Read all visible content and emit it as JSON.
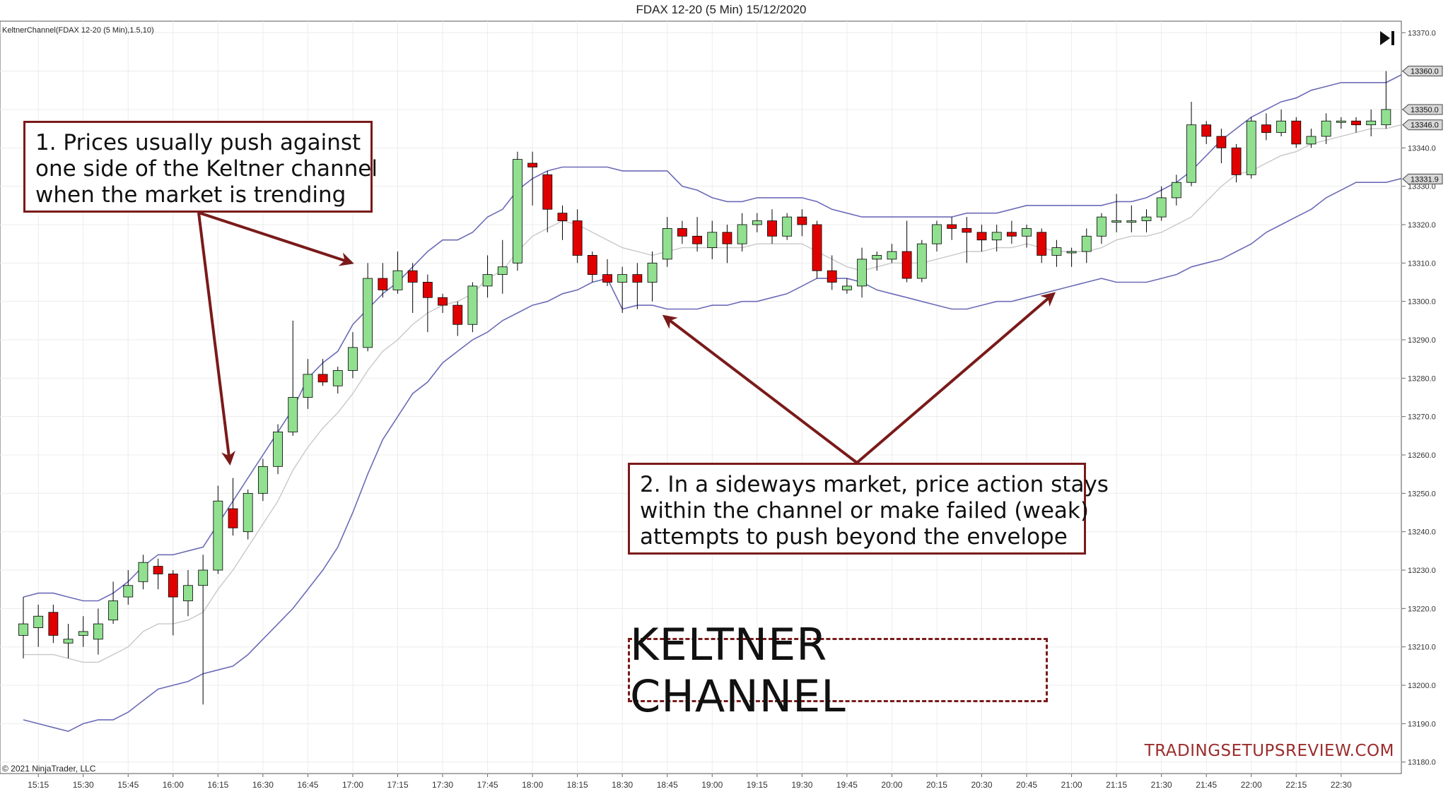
{
  "window": {
    "title": "FDAX 12-20 (5 Min)  15/12/2020",
    "indicator_label": "KeltnerChannel(FDAX 12-20 (5 Min),1.5,10)",
    "copyright": "© 2021 NinjaTrader, LLC",
    "end_button_icon": "skip-to-end-icon"
  },
  "annotations": {
    "note1": [
      "1. Prices usually push against",
      "one side of the Keltner channel",
      "when the market is trending"
    ],
    "note2": [
      "2. In a sideways market, price action stays",
      "within the channel or make failed (weak)",
      "attempts to push beyond the envelope"
    ],
    "title": "KELTNER CHANNEL",
    "watermark": "TRADINGSETUPSREVIEW.COM"
  },
  "colors": {
    "up_candle": "#90e090",
    "down_candle": "#e00000",
    "channel": "#6b6bb8",
    "midline": "#c8c8c8",
    "annotation": "#7a1a1a"
  },
  "chart_data": {
    "type": "candlestick",
    "ylim": [
      13177,
      13373
    ],
    "y_ticks": [
      "13370.0",
      "13360.0",
      "13350.0",
      "13340.0",
      "13330.0",
      "13320.0",
      "13310.0",
      "13300.0",
      "13290.0",
      "13280.0",
      "13270.0",
      "13260.0",
      "13250.0",
      "13240.0",
      "13230.0",
      "13220.0",
      "13210.0",
      "13200.0",
      "13190.0",
      "13180.0"
    ],
    "x_ticks": [
      "15:15",
      "15:30",
      "15:45",
      "16:00",
      "16:15",
      "16:30",
      "16:45",
      "17:00",
      "17:15",
      "17:30",
      "17:45",
      "18:00",
      "18:15",
      "18:30",
      "18:45",
      "19:00",
      "19:15",
      "19:30",
      "19:45",
      "20:00",
      "20:15",
      "20:30",
      "20:45",
      "21:00",
      "21:15",
      "21:30",
      "21:45",
      "22:00",
      "22:15",
      "22:30"
    ],
    "price_markers": [
      {
        "label": "13360.0",
        "value": 13360.0
      },
      {
        "label": "13350.0",
        "value": 13350.0
      },
      {
        "label": "13346.0",
        "value": 13346.0
      },
      {
        "label": "13331.9",
        "value": 13331.9
      }
    ],
    "candles": [
      [
        13213,
        13223,
        13207,
        13216
      ],
      [
        13215,
        13221,
        13210,
        13218
      ],
      [
        13219,
        13221,
        13211,
        13213
      ],
      [
        13211,
        13216,
        13207,
        13212
      ],
      [
        13213,
        13218,
        13210,
        13214
      ],
      [
        13212,
        13220,
        13208,
        13216
      ],
      [
        13217,
        13227,
        13216,
        13222
      ],
      [
        13223,
        13230,
        13221,
        13226
      ],
      [
        13227,
        13234,
        13225,
        13232
      ],
      [
        13231,
        13233,
        13225,
        13229
      ],
      [
        13229,
        13230,
        13213,
        13223
      ],
      [
        13222,
        13230,
        13218,
        13226
      ],
      [
        13226,
        13234,
        13195,
        13230
      ],
      [
        13230,
        13252,
        13229,
        13248
      ],
      [
        13246,
        13254,
        13239,
        13241
      ],
      [
        13240,
        13251,
        13238,
        13250
      ],
      [
        13250,
        13259,
        13248,
        13257
      ],
      [
        13257,
        13268,
        13255,
        13266
      ],
      [
        13266,
        13295,
        13265,
        13275
      ],
      [
        13275,
        13285,
        13272,
        13281
      ],
      [
        13281,
        13285,
        13278,
        13279
      ],
      [
        13278,
        13283,
        13276,
        13282
      ],
      [
        13282,
        13292,
        13280,
        13288
      ],
      [
        13288,
        13310,
        13287,
        13306
      ],
      [
        13306,
        13310,
        13301,
        13303
      ],
      [
        13303,
        13313,
        13302,
        13308
      ],
      [
        13308,
        13310,
        13297,
        13305
      ],
      [
        13305,
        13307,
        13292,
        13301
      ],
      [
        13301,
        13302,
        13297,
        13299
      ],
      [
        13299,
        13300,
        13291,
        13294
      ],
      [
        13294,
        13305,
        13292,
        13304
      ],
      [
        13304,
        13312,
        13301,
        13307
      ],
      [
        13307,
        13316,
        13302,
        13309
      ],
      [
        13310,
        13339,
        13308,
        13337
      ],
      [
        13336,
        13339,
        13325,
        13335
      ],
      [
        13333,
        13334,
        13318,
        13324
      ],
      [
        13323,
        13325,
        13316,
        13321
      ],
      [
        13321,
        13324,
        13310,
        13312
      ],
      [
        13312,
        13313,
        13305,
        13307
      ],
      [
        13307,
        13311,
        13304,
        13305
      ],
      [
        13305,
        13309,
        13297,
        13307
      ],
      [
        13307,
        13310,
        13298,
        13305
      ],
      [
        13305,
        13313,
        13300,
        13310
      ],
      [
        13311,
        13322,
        13309,
        13319
      ],
      [
        13319,
        13321,
        13315,
        13317
      ],
      [
        13317,
        13322,
        13313,
        13315
      ],
      [
        13314,
        13321,
        13311,
        13318
      ],
      [
        13318,
        13320,
        13310,
        13315
      ],
      [
        13315,
        13323,
        13313,
        13320
      ],
      [
        13320,
        13323,
        13318,
        13321
      ],
      [
        13321,
        13324,
        13315,
        13317
      ],
      [
        13317,
        13323,
        13316,
        13322
      ],
      [
        13322,
        13324,
        13317,
        13320
      ],
      [
        13320,
        13321,
        13306,
        13308
      ],
      [
        13308,
        13312,
        13303,
        13305
      ],
      [
        13303,
        13306,
        13302,
        13304
      ],
      [
        13304,
        13314,
        13301,
        13311
      ],
      [
        13311,
        13313,
        13308,
        13312
      ],
      [
        13311,
        13315,
        13310,
        13313
      ],
      [
        13313,
        13321,
        13305,
        13306
      ],
      [
        13306,
        13316,
        13305,
        13315
      ],
      [
        13315,
        13321,
        13313,
        13320
      ],
      [
        13320,
        13322,
        13316,
        13319
      ],
      [
        13319,
        13322,
        13310,
        13318
      ],
      [
        13318,
        13320,
        13313,
        13316
      ],
      [
        13316,
        13320,
        13313,
        13318
      ],
      [
        13318,
        13321,
        13315,
        13317
      ],
      [
        13317,
        13320,
        13314,
        13319
      ],
      [
        13318,
        13319,
        13310,
        13312
      ],
      [
        13312,
        13316,
        13309,
        13314
      ],
      [
        13313,
        13314,
        13309,
        13313
      ],
      [
        13313,
        13319,
        13310,
        13317
      ],
      [
        13317,
        13323,
        13315,
        13322
      ],
      [
        13321,
        13328,
        13318,
        13321
      ],
      [
        13321,
        13325,
        13318,
        13321
      ],
      [
        13321,
        13324,
        13318,
        13322
      ],
      [
        13322,
        13330,
        13321,
        13327
      ],
      [
        13327,
        13333,
        13325,
        13331
      ],
      [
        13331,
        13352,
        13330,
        13346
      ],
      [
        13346,
        13347,
        13341,
        13343
      ],
      [
        13343,
        13345,
        13336,
        13340
      ],
      [
        13340,
        13341,
        13331,
        13333
      ],
      [
        13333,
        13348,
        13332,
        13347
      ],
      [
        13346,
        13349,
        13342,
        13344
      ],
      [
        13344,
        13350,
        13343,
        13347
      ],
      [
        13347,
        13348,
        13340,
        13341
      ],
      [
        13341,
        13345,
        13340,
        13343
      ],
      [
        13343,
        13349,
        13341,
        13347
      ],
      [
        13347,
        13348,
        13345,
        13347
      ],
      [
        13347,
        13348,
        13344,
        13346
      ],
      [
        13346,
        13350,
        13343,
        13347
      ],
      [
        13346,
        13360,
        13345,
        13350
      ]
    ],
    "upper_band": [
      13223,
      13224,
      13224,
      13223,
      13222,
      13222,
      13224,
      13227,
      13231,
      13234,
      13234,
      13235,
      13236,
      13242,
      13248,
      13254,
      13260,
      13266,
      13272,
      13280,
      13284,
      13287,
      13294,
      13298,
      13302,
      13305,
      13309,
      13313,
      13316,
      13316,
      13318,
      13322,
      13324,
      13329,
      13332,
      13334,
      13335,
      13335,
      13335,
      13335,
      13334,
      13334,
      13334,
      13334,
      13330,
      13329,
      13327,
      13326,
      13326,
      13327,
      13327,
      13327,
      13327,
      13326,
      13324,
      13323,
      13322,
      13322,
      13322,
      13322,
      13322,
      13322,
      13322,
      13323,
      13323,
      13323,
      13324,
      13325,
      13325,
      13325,
      13325,
      13325,
      13325,
      13326,
      13326,
      13327,
      13329,
      13331,
      13334,
      13338,
      13342,
      13345,
      13348,
      13350,
      13352,
      13353,
      13355,
      13356,
      13357,
      13357,
      13357,
      13357,
      13359
    ],
    "midline": [
      13208,
      13208,
      13208,
      13207,
      13206,
      13206,
      13208,
      13210,
      13214,
      13216,
      13216,
      13217,
      13219,
      13225,
      13230,
      13236,
      13242,
      13248,
      13256,
      13262,
      13267,
      13271,
      13276,
      13282,
      13287,
      13290,
      13294,
      13297,
      13299,
      13300,
      13302,
      13306,
      13308,
      13313,
      13317,
      13319,
      13321,
      13320,
      13318,
      13316,
      13314,
      13313,
      13312,
      13313,
      13314,
      13314,
      13314,
      13314,
      13314,
      13315,
      13315,
      13315,
      13315,
      13313,
      13311,
      13309,
      13308,
      13309,
      13310,
      13310,
      13310,
      13311,
      13312,
      13313,
      13313,
      13314,
      13314,
      13315,
      13314,
      13313,
      13313,
      13313,
      13314,
      13316,
      13317,
      13317,
      13318,
      13320,
      13322,
      13326,
      13330,
      13333,
      13334,
      13336,
      13338,
      13339,
      13341,
      13342,
      13343,
      13344,
      13345,
      13345,
      13346
    ],
    "lower_band": [
      13191,
      13190,
      13189,
      13188,
      13190,
      13191,
      13191,
      13193,
      13196,
      13199,
      13200,
      13201,
      13203,
      13204,
      13205,
      13208,
      13212,
      13216,
      13220,
      13225,
      13230,
      13236,
      13245,
      13255,
      13264,
      13270,
      13276,
      13279,
      13284,
      13287,
      13290,
      13292,
      13295,
      13297,
      13299,
      13300,
      13302,
      13303,
      13305,
      13306,
      13298,
      13299,
      13299,
      13298,
      13298,
      13298,
      13299,
      13299,
      13300,
      13300,
      13301,
      13302,
      13304,
      13306,
      13306,
      13306,
      13305,
      13303,
      13302,
      13301,
      13300,
      13299,
      13298,
      13298,
      13299,
      13300,
      13300,
      13301,
      13302,
      13303,
      13304,
      13305,
      13306,
      13305,
      13305,
      13305,
      13306,
      13307,
      13309,
      13310,
      13311,
      13313,
      13315,
      13318,
      13320,
      13322,
      13324,
      13327,
      13329,
      13331,
      13331,
      13331,
      13332
    ]
  }
}
